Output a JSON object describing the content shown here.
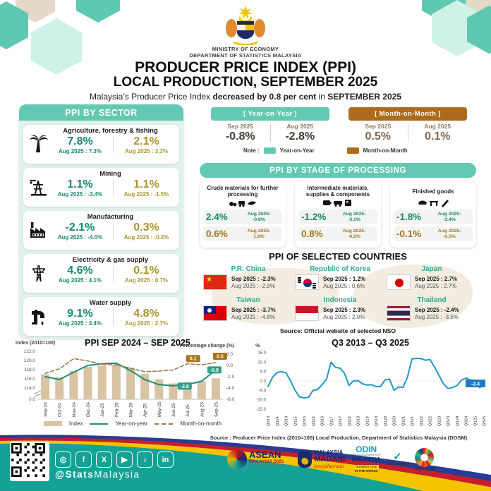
{
  "header": {
    "ministry": "MINISTRY OF ECONOMY",
    "department": "DEPARTMENT OF STATISTICS MALAYSIA",
    "title_line1": "PRODUCER PRICE INDEX (PPI)",
    "title_line2": "LOCAL PRODUCTION, SEPTEMBER 2025",
    "subtitle": {
      "pre": "Malaysia’s Producer Price Index ",
      "bold1": "decreased by 0.8 per cent",
      "mid": " in ",
      "bold2": "SEPTEMBER 2025"
    }
  },
  "sector_panel": {
    "title": "PPI BY SECTOR",
    "rows": [
      {
        "name": "Agriculture, forestry & fishing",
        "icon": "palm-tree",
        "yoy": "7.8%",
        "yoy_prev": "Aug 2025 : 7.3%",
        "mom": "2.1%",
        "mom_prev": "Aug 2025 : 3.3%"
      },
      {
        "name": "Mining",
        "icon": "oil-rig",
        "yoy": "1.1%",
        "yoy_prev": "Aug 2025 : -3.4%",
        "mom": "1.1%",
        "mom_prev": "Aug 2025 : -1.5%"
      },
      {
        "name": "Manufacturing",
        "icon": "factory",
        "yoy": "-2.1%",
        "yoy_prev": "Aug 2025 : -4.0%",
        "mom": "0.3%",
        "mom_prev": "Aug 2025 : -0.2%"
      },
      {
        "name": "Electricity & gas supply",
        "icon": "transmission-tower",
        "yoy": "4.6%",
        "yoy_prev": "Aug 2025 : 4.1%",
        "mom": "0.1%",
        "mom_prev": "Aug 2025 : 0.7%"
      },
      {
        "name": "Water supply",
        "icon": "water-tap",
        "yoy": "9.1%",
        "yoy_prev": "Aug 2025 : 3.4%",
        "mom": "4.8%",
        "mom_prev": "Aug 2025 : 2.7%"
      }
    ]
  },
  "comparison": {
    "yoy": {
      "header": "[ Year-on-Year ]",
      "col1_label": "Sep 2025",
      "col1_value": "-0.8%",
      "col2_label": "Aug 2025",
      "col2_value": "-2.8%"
    },
    "mom": {
      "header": "[ Month-on-Month ]",
      "col1_label": "Sep 2025",
      "col1_value": "0.5%",
      "col2_label": "Aug 2025",
      "col2_value": "0.1%"
    },
    "note_label": "Note :",
    "note_yoy": "Year-on-Year",
    "note_mom": "Month-on-Month"
  },
  "stage_panel": {
    "title": "PPI BY STAGE OF PROCESSING",
    "cards": [
      {
        "name": "Crude materials for further processing",
        "yoy": "2.4%",
        "yoy_prev1": "Aug 2025:",
        "yoy_prev2": "-0.8%",
        "mom": "0.6%",
        "mom_prev1": "Aug 2025:",
        "mom_prev2": "1.6%"
      },
      {
        "name": "Intermediate materials, supplies & components",
        "yoy": "-1.2%",
        "yoy_prev1": "Aug 2025:",
        "yoy_prev2": "-3.1%",
        "mom": "0.8%",
        "mom_prev1": "Aug 2025:",
        "mom_prev2": "-0.2%"
      },
      {
        "name": "Finished goods",
        "yoy": "-1.8%",
        "yoy_prev1": "Aug 2025:",
        "yoy_prev2": "-3.4%",
        "mom": "-0.1%",
        "mom_prev1": "Aug 2025:",
        "mom_prev2": "-0.5%"
      }
    ]
  },
  "countries": {
    "title": "PPI OF SELECTED COUNTRIES",
    "items": [
      {
        "name": "P.R. China",
        "flag": "china",
        "sep": "Sep 2025 : -2.3%",
        "aug": "Aug 2025 : -2.9%"
      },
      {
        "name": "Republic of Korea",
        "flag": "korea",
        "sep": "Sep 2025 : 1.2%",
        "aug": "Aug 2025 : 0.6%"
      },
      {
        "name": "Japan",
        "flag": "japan",
        "sep": "Sep 2025 : 2.7%",
        "aug": "Aug 2025 : 2.7%"
      },
      {
        "name": "Taiwan",
        "flag": "taiwan",
        "sep": "Sep 2025 : -3.7%",
        "aug": "Aug 2025 : -4.8%"
      },
      {
        "name": "Indonesia",
        "flag": "indonesia",
        "sep": "Sep 2025 : 2.3%",
        "aug": "Aug 2025 : 2.0%"
      },
      {
        "name": "Thailand",
        "flag": "thailand",
        "sep": "Sep 2025 : -2.4%",
        "aug": "Aug 2025 : -3.5%"
      }
    ],
    "source": "Source: Official website of selected NSO"
  },
  "chart_data": [
    {
      "type": "bar",
      "title": "PPI SEP 2024 – SEP 2025",
      "left_axis_label": "Index (2010=100)",
      "right_axis_label": "Percentage change (%)",
      "categories": [
        "Sep-24",
        "Oct-24",
        "Nov-24",
        "Dec-24",
        "Jan-25",
        "Feb-25",
        "Mar-25",
        "Apr-25",
        "May-25",
        "Jun-25",
        "Jul-25",
        "Aug-25",
        "Sep-25"
      ],
      "series": [
        {
          "name": "Index",
          "type": "bar",
          "color": "#d8c3a3",
          "values": [
            117.0,
            116.3,
            117.7,
            118.6,
            118.9,
            119.0,
            118.4,
            117.1,
            115.9,
            115.0,
            115.3,
            115.5,
            116.1
          ]
        },
        {
          "name": "Year-on-year",
          "type": "line",
          "style": "solid",
          "color": "#1e8e74",
          "values": [
            -2.0,
            -2.5,
            -1.2,
            0.0,
            0.3,
            0.4,
            -0.9,
            -2.5,
            -3.4,
            -3.6,
            -3.4,
            -2.8,
            -0.8
          ]
        },
        {
          "name": "Month-on-month",
          "type": "line",
          "style": "dashed",
          "color": "#9b7c50",
          "values": [
            -1.4,
            -0.6,
            1.2,
            0.8,
            0.2,
            0.1,
            -0.5,
            -1.1,
            -1.0,
            -0.8,
            0.3,
            0.1,
            0.5
          ]
        }
      ],
      "left_ticks": [
        "122.0",
        "120.0",
        "118.0",
        "116.0",
        "114.0",
        "0.0"
      ],
      "right_ticks": [
        "2.0",
        "0.0",
        "-2.0",
        "-4.0",
        "-6.0"
      ],
      "left_range": [
        114,
        122
      ],
      "right_range": [
        -6,
        2
      ],
      "annotations": [
        {
          "text": "0.1",
          "value": 0.1,
          "series": 2,
          "index": 11,
          "color": "#a9731e"
        },
        {
          "text": "0.5",
          "value": 0.5,
          "series": 2,
          "index": 12,
          "color": "#a9731e"
        },
        {
          "text": "-2.8",
          "value": -2.8,
          "series": 1,
          "index": 11,
          "color": "#2f9e86"
        },
        {
          "text": "-0.8",
          "value": -0.8,
          "series": 1,
          "index": 12,
          "color": "#2f9e86"
        }
      ],
      "legend": [
        "Index",
        "Year-on-year",
        "Month-on-month"
      ]
    },
    {
      "type": "line",
      "title": "Q3 2013 – Q3 2025",
      "ylabel": "%",
      "ylim": [
        -15,
        15
      ],
      "yticks": [
        15.0,
        10.0,
        5.0,
        0.0,
        -5.0,
        -10.0,
        -15.0
      ],
      "x_labels": [
        "Q313",
        "Q114",
        "Q314",
        "Q115",
        "Q315",
        "Q116",
        "Q316",
        "Q117",
        "Q317",
        "Q118",
        "Q318",
        "Q119",
        "Q319",
        "Q120",
        "Q320",
        "Q121",
        "Q321",
        "Q122",
        "Q322",
        "Q123",
        "Q323",
        "Q124",
        "Q324",
        "Q125",
        "Q325"
      ],
      "values": [
        -3.0,
        2.0,
        4.5,
        5.0,
        4.2,
        0.0,
        -5.0,
        -8.5,
        -9.0,
        -8.7,
        -5.0,
        -4.6,
        -2.0,
        1.0,
        10.0,
        7.2,
        6.8,
        4.0,
        -2.3,
        0.1,
        0.2,
        -1.5,
        -2.2,
        -2.0,
        -3.0,
        -3.0,
        0.5,
        1.0,
        -5.0,
        -3.2,
        -3.4,
        2.0,
        11.7,
        12.0,
        11.9,
        11.0,
        11.4,
        7.5,
        3.0,
        -1.5,
        -4.0,
        -3.5,
        -2.5,
        0.5,
        1.5,
        0.5,
        -0.3,
        -3.5,
        -2.4
      ],
      "color": "#2097c9",
      "end_annotation": {
        "text": "-2.4",
        "color": "#1b7cc4"
      }
    }
  ],
  "footer": {
    "source": "Source : Producer Price Index (2010=100)  Local Production, Department of Statistics Malaysia (DOSM)",
    "handle_bold": "@Stats",
    "handle_rest": "Malaysia",
    "social": [
      {
        "name": "instagram",
        "glyph": "◎"
      },
      {
        "name": "facebook",
        "glyph": "f"
      },
      {
        "name": "x",
        "glyph": "X"
      },
      {
        "name": "youtube",
        "glyph": "▶"
      },
      {
        "name": "tiktok",
        "glyph": "♪"
      },
      {
        "name": "linkedin",
        "glyph": "in"
      }
    ],
    "logos": {
      "asean1": "ASEAN",
      "asean2": "MALAYSIA 2025",
      "asean3": "INCLUSIVITY AND SUSTAINABILITY",
      "madani1": "MALAYSIA",
      "madani2": "MADANI",
      "madani3": "kesejahteraan",
      "odin1": "ODIN",
      "odin2": "OPEN DATA INVENTORY",
      "odin3": "MALAYSIA",
      "odin4": "NUMBER ONE",
      "odin5": "IN THE WORLD",
      "october_mark": "✓",
      "october": "20 October",
      "sdg_years": "2016 - 2030"
    }
  }
}
